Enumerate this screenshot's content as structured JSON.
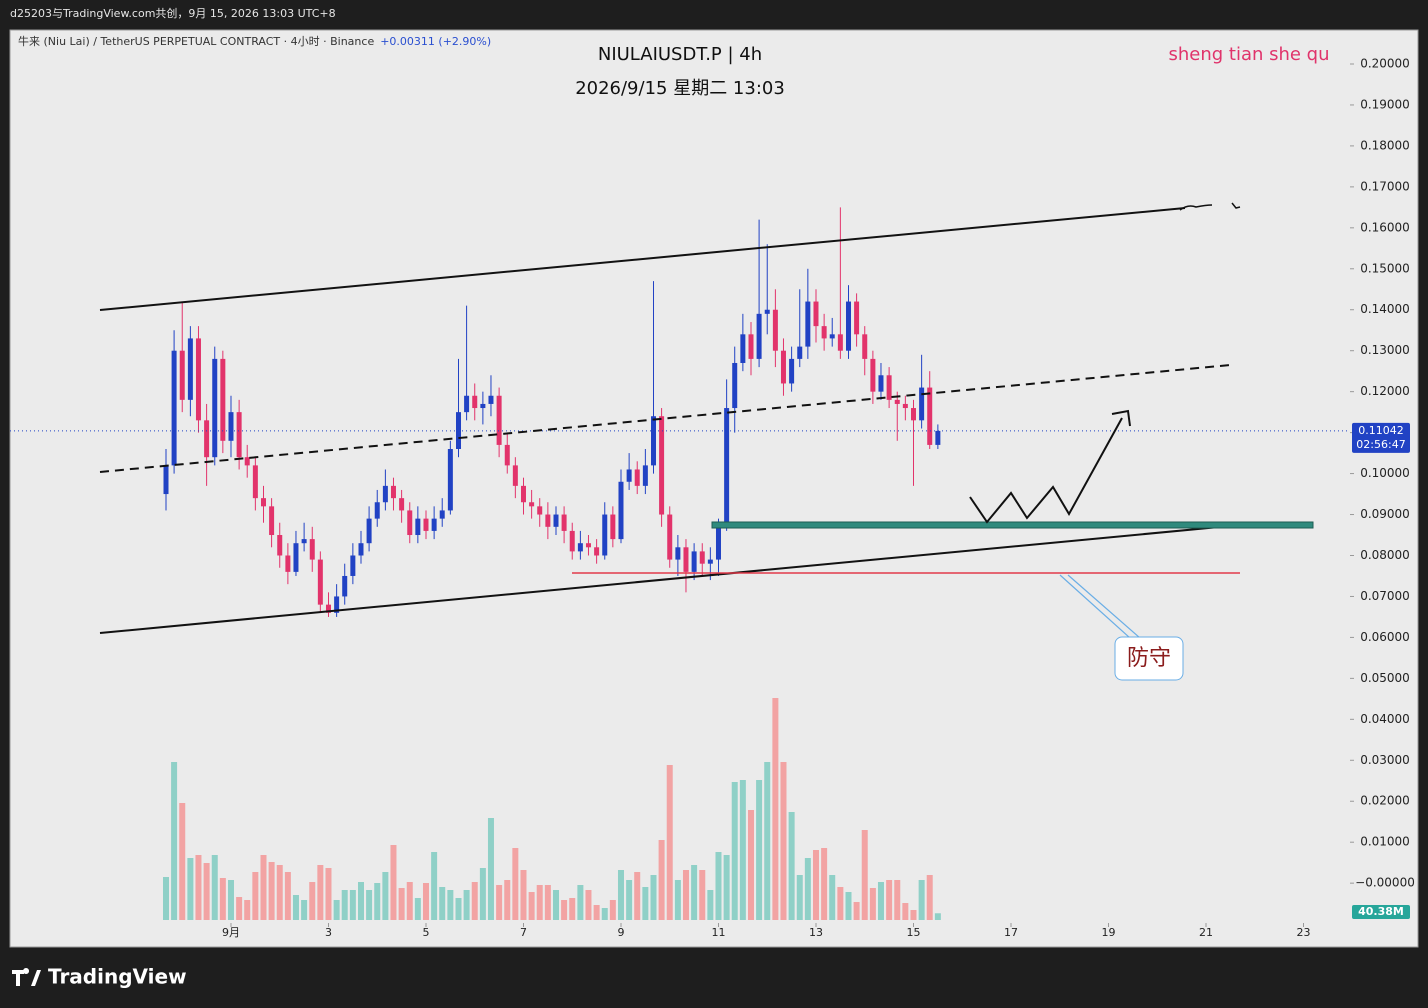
{
  "header": "d25203与TradingView.com共创，9月 15, 2026 13:03 UTC+8",
  "footer": "TradingView",
  "chart_data": {
    "type": "candlestick",
    "title": "NIULAIUSDT.P | 4h",
    "subtitle": "2026/9/15 星期二 13:03",
    "watermark": "sheng tian she qu",
    "symbol": "牛来 (Niu Lai) / TetherUS PERPETUAL CONTRACT · 4小时 · Binance",
    "change": "+0.00311 (+2.90%)",
    "annotation": "防守",
    "last_price": 0.11042,
    "countdown": "02:56:47",
    "last_volume_label": "40.38M",
    "up_color": "#2142c4",
    "down_color": "#e2336b",
    "volume_up_color": "#8fd0c7",
    "volume_down_color": "#f2a3a3",
    "xlim": [
      -4.533,
      22.954
    ],
    "xticks": [
      {
        "value": 0,
        "label": "9月"
      },
      {
        "value": 2,
        "label": "3"
      },
      {
        "value": 4,
        "label": "5"
      },
      {
        "value": 6,
        "label": "7"
      },
      {
        "value": 8,
        "label": "9"
      },
      {
        "value": 10,
        "label": "11"
      },
      {
        "value": 12,
        "label": "13"
      },
      {
        "value": 14,
        "label": "15"
      },
      {
        "value": 16,
        "label": "17"
      },
      {
        "value": 18,
        "label": "19"
      },
      {
        "value": 20,
        "label": "21"
      },
      {
        "value": 22,
        "label": "23"
      }
    ],
    "ylim": [
      -0.0151,
      0.2083
    ],
    "yticks": [
      {
        "value": 0.2,
        "label": "0.20000"
      },
      {
        "value": 0.19,
        "label": "0.19000"
      },
      {
        "value": 0.18,
        "label": "0.18000"
      },
      {
        "value": 0.17,
        "label": "0.17000"
      },
      {
        "value": 0.16,
        "label": "0.16000"
      },
      {
        "value": 0.15,
        "label": "0.15000"
      },
      {
        "value": 0.14,
        "label": "0.14000"
      },
      {
        "value": 0.13,
        "label": "0.13000"
      },
      {
        "value": 0.12,
        "label": "0.12000"
      },
      {
        "value": 0.11,
        "label": "0.11000"
      },
      {
        "value": 0.1,
        "label": "0.10000"
      },
      {
        "value": 0.09,
        "label": "0.09000"
      },
      {
        "value": 0.08,
        "label": "0.08000"
      },
      {
        "value": 0.07,
        "label": "0.07000"
      },
      {
        "value": 0.06,
        "label": "0.06000"
      },
      {
        "value": 0.05,
        "label": "0.05000"
      },
      {
        "value": 0.04,
        "label": "0.04000"
      },
      {
        "value": 0.03,
        "label": "0.03000"
      },
      {
        "value": 0.02,
        "label": "0.02000"
      },
      {
        "value": 0.01,
        "label": "0.01000"
      },
      {
        "value": 0,
        "label": "−0.00000"
      }
    ],
    "x": [
      -1.333,
      -1.167,
      -1,
      -0.833,
      -0.667,
      -0.5,
      -0.333,
      -0.167,
      0,
      0.167,
      0.333,
      0.5,
      0.667,
      0.833,
      1,
      1.167,
      1.333,
      1.5,
      1.667,
      1.833,
      2,
      2.167,
      2.333,
      2.5,
      2.667,
      2.833,
      3,
      3.167,
      3.333,
      3.5,
      3.667,
      3.833,
      4,
      4.167,
      4.333,
      4.5,
      4.667,
      4.833,
      5,
      5.167,
      5.333,
      5.5,
      5.667,
      5.833,
      6,
      6.167,
      6.333,
      6.5,
      6.667,
      6.833,
      7,
      7.167,
      7.333,
      7.5,
      7.667,
      7.833,
      8,
      8.167,
      8.333,
      8.5,
      8.667,
      8.833,
      9,
      9.167,
      9.333,
      9.5,
      9.667,
      9.833,
      10,
      10.167,
      10.333,
      10.5,
      10.667,
      10.833,
      11,
      11.167,
      11.333,
      11.5,
      11.667,
      11.833,
      12,
      12.167,
      12.333,
      12.5,
      12.667,
      12.833,
      13,
      13.167,
      13.333,
      13.5,
      13.667,
      13.833,
      14,
      14.167,
      14.333,
      14.5
    ],
    "open": [
      0.095,
      0.102,
      0.13,
      0.118,
      0.133,
      0.113,
      0.104,
      0.128,
      0.108,
      0.115,
      0.104,
      0.102,
      0.094,
      0.092,
      0.085,
      0.08,
      0.076,
      0.083,
      0.084,
      0.079,
      0.068,
      0.066,
      0.07,
      0.075,
      0.08,
      0.083,
      0.089,
      0.093,
      0.097,
      0.094,
      0.091,
      0.085,
      0.089,
      0.086,
      0.089,
      0.091,
      0.106,
      0.115,
      0.119,
      0.116,
      0.117,
      0.119,
      0.107,
      0.102,
      0.097,
      0.093,
      0.092,
      0.09,
      0.087,
      0.09,
      0.086,
      0.081,
      0.083,
      0.082,
      0.08,
      0.09,
      0.084,
      0.098,
      0.101,
      0.097,
      0.102,
      0.114,
      0.09,
      0.079,
      0.082,
      0.076,
      0.081,
      0.078,
      0.079,
      0.087,
      0.116,
      0.127,
      0.134,
      0.128,
      0.139,
      0.14,
      0.13,
      0.122,
      0.128,
      0.131,
      0.142,
      0.136,
      0.133,
      0.134,
      0.13,
      0.142,
      0.134,
      0.128,
      0.12,
      0.124,
      0.118,
      0.117,
      0.116,
      0.113,
      0.121,
      0.107
    ],
    "high": [
      0.106,
      0.135,
      0.142,
      0.136,
      0.136,
      0.117,
      0.131,
      0.13,
      0.119,
      0.118,
      0.107,
      0.104,
      0.097,
      0.094,
      0.088,
      0.083,
      0.086,
      0.088,
      0.087,
      0.081,
      0.071,
      0.073,
      0.078,
      0.083,
      0.086,
      0.092,
      0.096,
      0.101,
      0.099,
      0.096,
      0.093,
      0.092,
      0.091,
      0.092,
      0.094,
      0.108,
      0.128,
      0.141,
      0.122,
      0.12,
      0.124,
      0.121,
      0.11,
      0.104,
      0.099,
      0.096,
      0.094,
      0.093,
      0.092,
      0.092,
      0.088,
      0.086,
      0.085,
      0.084,
      0.093,
      0.092,
      0.101,
      0.105,
      0.103,
      0.106,
      0.147,
      0.116,
      0.092,
      0.085,
      0.084,
      0.083,
      0.083,
      0.082,
      0.089,
      0.123,
      0.131,
      0.139,
      0.137,
      0.162,
      0.156,
      0.145,
      0.133,
      0.131,
      0.145,
      0.15,
      0.145,
      0.139,
      0.138,
      0.165,
      0.146,
      0.144,
      0.136,
      0.13,
      0.127,
      0.126,
      0.12,
      0.119,
      0.118,
      0.129,
      0.125,
      0.112
    ],
    "low": [
      0.091,
      0.1,
      0.115,
      0.114,
      0.11,
      0.097,
      0.102,
      0.105,
      0.104,
      0.101,
      0.099,
      0.091,
      0.088,
      0.082,
      0.077,
      0.073,
      0.075,
      0.081,
      0.076,
      0.066,
      0.065,
      0.065,
      0.068,
      0.073,
      0.078,
      0.081,
      0.087,
      0.091,
      0.091,
      0.088,
      0.083,
      0.083,
      0.084,
      0.084,
      0.087,
      0.09,
      0.104,
      0.113,
      0.113,
      0.112,
      0.114,
      0.104,
      0.1,
      0.094,
      0.09,
      0.089,
      0.087,
      0.084,
      0.085,
      0.083,
      0.079,
      0.079,
      0.08,
      0.078,
      0.079,
      0.082,
      0.083,
      0.096,
      0.095,
      0.095,
      0.1,
      0.087,
      0.077,
      0.075,
      0.071,
      0.074,
      0.075,
      0.074,
      0.075,
      0.086,
      0.11,
      0.125,
      0.124,
      0.126,
      0.134,
      0.126,
      0.119,
      0.12,
      0.126,
      0.128,
      0.132,
      0.13,
      0.131,
      0.128,
      0.128,
      0.131,
      0.124,
      0.117,
      0.118,
      0.116,
      0.108,
      0.113,
      0.097,
      0.111,
      0.106,
      0.106
    ],
    "close": [
      0.102,
      0.13,
      0.118,
      0.133,
      0.113,
      0.104,
      0.128,
      0.108,
      0.115,
      0.104,
      0.102,
      0.094,
      0.092,
      0.085,
      0.08,
      0.076,
      0.083,
      0.084,
      0.079,
      0.068,
      0.066,
      0.07,
      0.075,
      0.08,
      0.083,
      0.089,
      0.093,
      0.097,
      0.094,
      0.091,
      0.085,
      0.089,
      0.086,
      0.089,
      0.091,
      0.106,
      0.115,
      0.119,
      0.116,
      0.117,
      0.119,
      0.107,
      0.102,
      0.097,
      0.093,
      0.092,
      0.09,
      0.087,
      0.09,
      0.086,
      0.081,
      0.083,
      0.082,
      0.08,
      0.09,
      0.084,
      0.098,
      0.101,
      0.097,
      0.102,
      0.114,
      0.09,
      0.079,
      0.082,
      0.076,
      0.081,
      0.078,
      0.079,
      0.087,
      0.116,
      0.127,
      0.134,
      0.128,
      0.139,
      0.14,
      0.13,
      0.122,
      0.128,
      0.131,
      0.142,
      0.136,
      0.133,
      0.134,
      0.13,
      0.142,
      0.134,
      0.128,
      0.12,
      0.124,
      0.118,
      0.117,
      0.116,
      0.113,
      0.121,
      0.107,
      0.11042
    ],
    "volume": [
      258,
      948,
      702,
      372,
      390,
      342,
      390,
      252,
      240,
      138,
      120,
      288,
      390,
      348,
      330,
      288,
      150,
      120,
      228,
      330,
      312,
      120,
      180,
      180,
      228,
      180,
      222,
      288,
      450,
      192,
      228,
      132,
      222,
      408,
      198,
      180,
      132,
      180,
      228,
      312,
      612,
      210,
      240,
      432,
      300,
      168,
      210,
      210,
      180,
      120,
      132,
      210,
      180,
      90,
      72,
      120,
      300,
      240,
      288,
      198,
      270,
      480,
      930,
      240,
      300,
      330,
      300,
      180,
      408,
      390,
      828,
      840,
      660,
      840,
      948,
      1332,
      948,
      648,
      270,
      372,
      420,
      432,
      270,
      198,
      168,
      108,
      540,
      192,
      228,
      240,
      240,
      102,
      60,
      240,
      270,
      40.38
    ]
  }
}
